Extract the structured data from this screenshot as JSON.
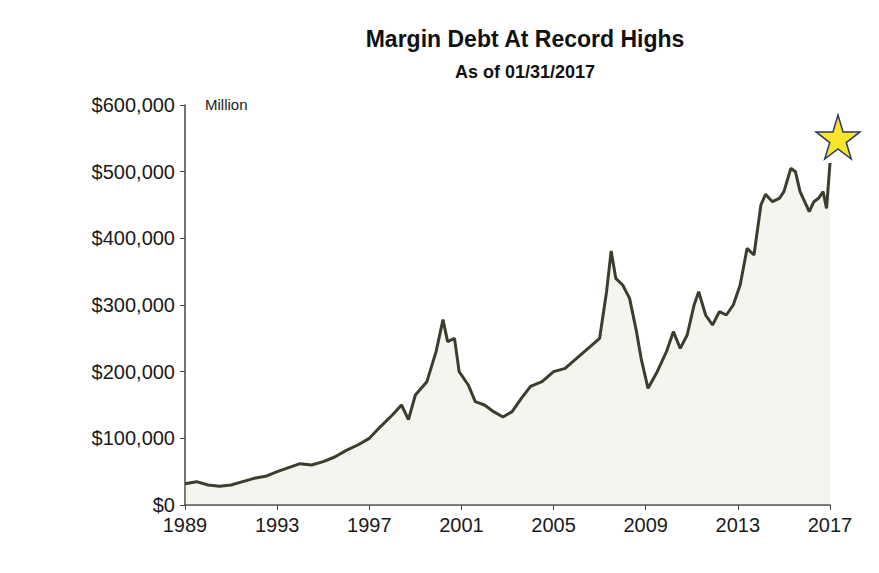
{
  "chart_data": {
    "type": "line",
    "title": "Margin Debt At Record Highs",
    "subtitle": "As of 01/31/2017",
    "annotations": [
      "Million"
    ],
    "color": "#3d3d2f",
    "x": [
      1989,
      1989.5,
      1990,
      1990.5,
      1991,
      1991.5,
      1992,
      1992.5,
      1993,
      1993.5,
      1994,
      1994.5,
      1995,
      1995.5,
      1996,
      1996.5,
      1997,
      1997.5,
      1998,
      1998.4,
      1998.7,
      1999,
      1999.5,
      1999.9,
      2000.2,
      2000.4,
      2000.7,
      2000.9,
      2001.3,
      2001.6,
      2002,
      2002.4,
      2002.8,
      2003.2,
      2003.6,
      2004,
      2004.5,
      2005,
      2005.5,
      2006,
      2006.5,
      2007,
      2007.3,
      2007.5,
      2007.7,
      2008,
      2008.3,
      2008.6,
      2008.8,
      2009.1,
      2009.5,
      2009.9,
      2010.2,
      2010.5,
      2010.8,
      2011.1,
      2011.3,
      2011.6,
      2011.9,
      2012.2,
      2012.5,
      2012.8,
      2013.1,
      2013.4,
      2013.7,
      2014,
      2014.2,
      2014.5,
      2014.8,
      2015,
      2015.3,
      2015.5,
      2015.7,
      2015.9,
      2016.1,
      2016.3,
      2016.5,
      2016.7,
      2016.85,
      2017
    ],
    "values": [
      32000,
      35000,
      30000,
      28000,
      30000,
      35000,
      40000,
      43000,
      50000,
      56000,
      62000,
      60000,
      65000,
      72000,
      82000,
      90000,
      100000,
      118000,
      135000,
      150000,
      128000,
      165000,
      185000,
      230000,
      278000,
      245000,
      250000,
      200000,
      180000,
      155000,
      150000,
      140000,
      132000,
      140000,
      160000,
      178000,
      185000,
      200000,
      205000,
      220000,
      235000,
      250000,
      320000,
      381000,
      340000,
      330000,
      310000,
      260000,
      220000,
      175000,
      200000,
      230000,
      260000,
      235000,
      255000,
      300000,
      320000,
      285000,
      270000,
      290000,
      285000,
      300000,
      330000,
      385000,
      375000,
      450000,
      466000,
      455000,
      460000,
      470000,
      505000,
      500000,
      470000,
      455000,
      440000,
      455000,
      460000,
      470000,
      445000,
      513000
    ],
    "xlim": [
      1989,
      2017
    ],
    "xticks": [
      1989,
      1993,
      1997,
      2001,
      2005,
      2009,
      2013,
      2017
    ],
    "ylim": [
      0,
      600000
    ],
    "yticks": [
      {
        "value": 0,
        "label": "$0"
      },
      {
        "value": 100000,
        "label": "$100,000"
      },
      {
        "value": 200000,
        "label": "$200,000"
      },
      {
        "value": 300000,
        "label": "$300,000"
      },
      {
        "value": 400000,
        "label": "$400,000"
      },
      {
        "value": 500000,
        "label": "$500,000"
      },
      {
        "value": 600000,
        "label": "$600,000"
      }
    ],
    "grid": false
  }
}
